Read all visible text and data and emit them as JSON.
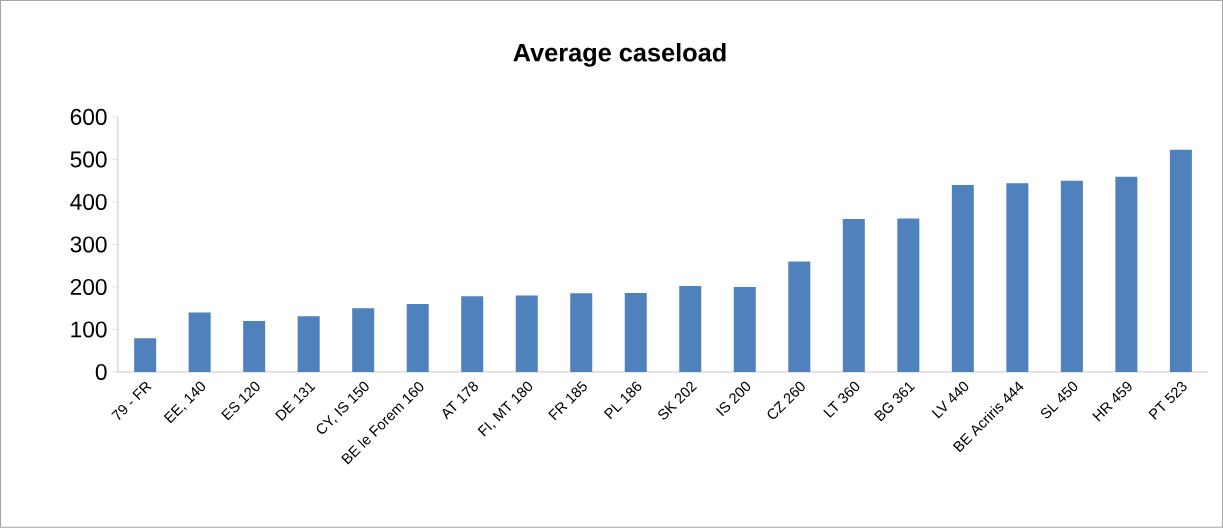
{
  "chart_data": {
    "type": "bar",
    "title": "Average caseload",
    "categories": [
      "79 - FR",
      "EE, 140",
      "ES 120",
      "DE 131",
      "CY, IS 150",
      "BE le Forem 160",
      "AT 178",
      "FI, MT 180",
      "FR 185",
      "PL 186",
      "SK 202",
      "IS 200",
      "CZ 260",
      "LT 360",
      "BG 361",
      "LV 440",
      "BE Acriris 444",
      "SL 450",
      "HR 459",
      "PT 523"
    ],
    "values": [
      79,
      140,
      120,
      131,
      150,
      160,
      178,
      180,
      185,
      186,
      202,
      200,
      260,
      360,
      361,
      440,
      444,
      450,
      459,
      523
    ],
    "color": "#4f81bd",
    "ylim": [
      0,
      600
    ],
    "yticks": [
      0,
      100,
      200,
      300,
      400,
      500,
      600
    ]
  }
}
